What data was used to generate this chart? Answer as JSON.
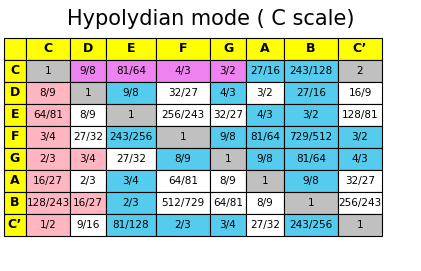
{
  "title": "Hypolydian mode ( C scale)",
  "col_headers": [
    "",
    "C",
    "D",
    "E",
    "F",
    "G",
    "A",
    "B",
    "C’"
  ],
  "row_headers": [
    "C",
    "D",
    "E",
    "F",
    "G",
    "A",
    "B",
    "C’"
  ],
  "table_data": [
    [
      "1",
      "9/8",
      "81/64",
      "4/3",
      "3/2",
      "27/16",
      "243/128",
      "2"
    ],
    [
      "8/9",
      "1",
      "9/8",
      "32/27",
      "4/3",
      "3/2",
      "27/16",
      "16/9"
    ],
    [
      "64/81",
      "8/9",
      "1",
      "256/243",
      "32/27",
      "4/3",
      "3/2",
      "128/81"
    ],
    [
      "3/4",
      "27/32",
      "243/256",
      "1",
      "9/8",
      "81/64",
      "729/512",
      "3/2"
    ],
    [
      "2/3",
      "3/4",
      "27/32",
      "8/9",
      "1",
      "9/8",
      "81/64",
      "4/3"
    ],
    [
      "16/27",
      "2/3",
      "3/4",
      "64/81",
      "8/9",
      "1",
      "9/8",
      "32/27"
    ],
    [
      "128/243",
      "16/27",
      "2/3",
      "512/729",
      "64/81",
      "8/9",
      "1",
      "256/243"
    ],
    [
      "1/2",
      "9/16",
      "81/128",
      "2/3",
      "3/4",
      "27/32",
      "243/256",
      "1"
    ]
  ],
  "cell_colors": [
    [
      "#c0c0c0",
      "#ee82ee",
      "#ee82ee",
      "#ee82ee",
      "#ee82ee",
      "#55ccee",
      "#55ccee",
      "#c0c0c0"
    ],
    [
      "#ffb6c1",
      "#c0c0c0",
      "#55ccee",
      "#ffffff",
      "#55ccee",
      "#ffffff",
      "#55ccee",
      "#ffffff"
    ],
    [
      "#ffb6c1",
      "#ffffff",
      "#c0c0c0",
      "#ffffff",
      "#ffffff",
      "#55ccee",
      "#55ccee",
      "#ffffff"
    ],
    [
      "#ffb6c1",
      "#ffffff",
      "#55ccee",
      "#c0c0c0",
      "#55ccee",
      "#55ccee",
      "#55ccee",
      "#55ccee"
    ],
    [
      "#ffb6c1",
      "#ffb6c1",
      "#ffffff",
      "#55ccee",
      "#c0c0c0",
      "#55ccee",
      "#55ccee",
      "#55ccee"
    ],
    [
      "#ffb6c1",
      "#ffffff",
      "#55ccee",
      "#ffffff",
      "#ffffff",
      "#c0c0c0",
      "#55ccee",
      "#ffffff"
    ],
    [
      "#ffb6c1",
      "#ffb6c1",
      "#55ccee",
      "#ffffff",
      "#ffffff",
      "#ffffff",
      "#c0c0c0",
      "#ffffff"
    ],
    [
      "#ffb6c1",
      "#ffffff",
      "#55ccee",
      "#55ccee",
      "#55ccee",
      "#ffffff",
      "#55ccee",
      "#c0c0c0"
    ]
  ],
  "header_color": "#ffff00",
  "border_color": "#000000",
  "title_fontsize": 15,
  "cell_fontsize": 7.5,
  "header_fontsize": 9,
  "fig_width": 4.21,
  "fig_height": 2.71,
  "dpi": 100
}
